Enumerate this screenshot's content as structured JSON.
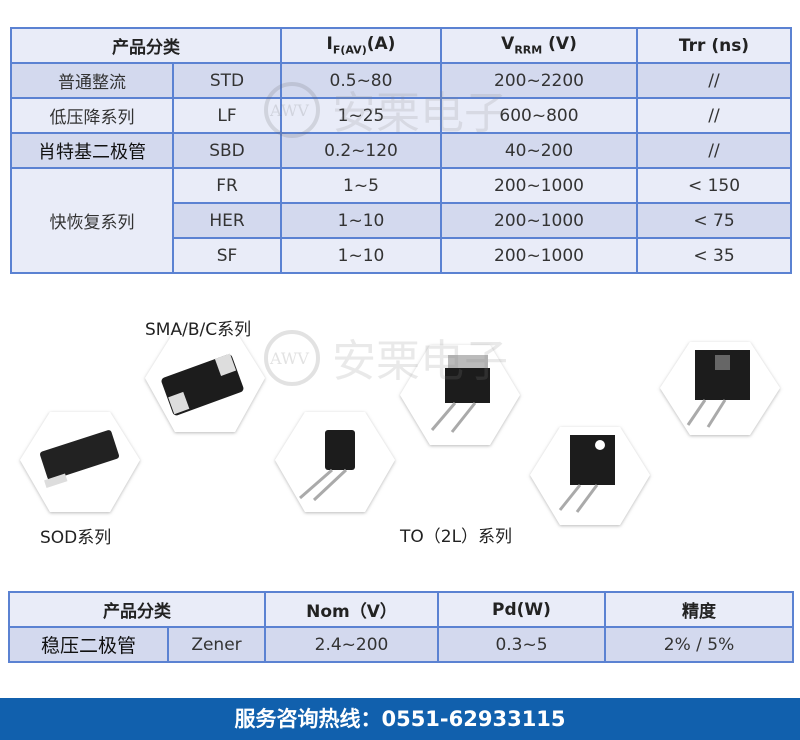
{
  "table1": {
    "headers": {
      "category": "产品分类",
      "if": "I",
      "if_sub": "F(AV)",
      "if_unit": "(A)",
      "vrrm": "V",
      "vrrm_sub": "RRM",
      "vrrm_unit": " (V)",
      "trr": "Trr (ns)"
    },
    "rows": [
      {
        "name": "普通整流",
        "code": "STD",
        "if": "0.5~80",
        "vrrm": "200~2200",
        "trr": "//"
      },
      {
        "name": "低压降系列",
        "code": "LF",
        "if": "1~25",
        "vrrm": "600~800",
        "trr": "//"
      },
      {
        "name": "肖特基二极管",
        "code": "SBD",
        "if": "0.2~120",
        "vrrm": "40~200",
        "trr": "//"
      },
      {
        "name": "快恢复系列",
        "code": "FR",
        "if": "1~5",
        "vrrm": "200~1000",
        "trr": "< 150"
      },
      {
        "code": "HER",
        "if": "1~10",
        "vrrm": "200~1000",
        "trr": "< 75"
      },
      {
        "code": "SF",
        "if": "1~10",
        "vrrm": "200~1000",
        "trr": "< 35"
      }
    ]
  },
  "images": {
    "sma_label": "SMA/B/C系列",
    "sod_label": "SOD系列",
    "to_label": "TO（2L）系列"
  },
  "watermark": {
    "logo": "AWV",
    "text": "安栗电子"
  },
  "table2": {
    "headers": {
      "category": "产品分类",
      "nom": "Nom（V）",
      "pd": "Pd(W)",
      "precision": "精度"
    },
    "row": {
      "name": "稳压二极管",
      "code": "Zener",
      "nom": "2.4~200",
      "pd": "0.3~5",
      "precision": "2% / 5%"
    }
  },
  "footer": {
    "text": "服务咨询热线：0551-62933115"
  },
  "colors": {
    "border": "#5b82d2",
    "footer": "#1160ad",
    "row_dark": "#d3d9ee",
    "row_light": "#e9ecf8"
  }
}
